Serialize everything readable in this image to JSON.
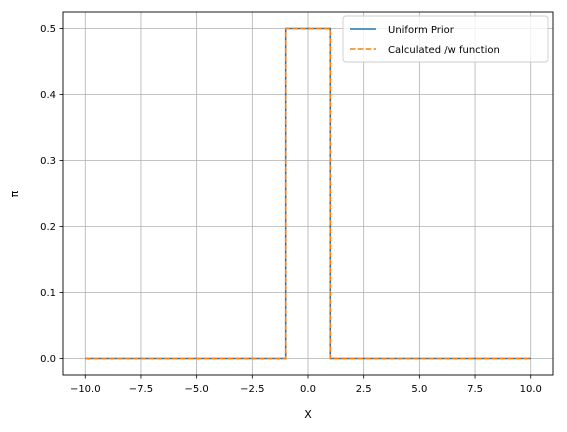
{
  "chart_data": {
    "type": "line",
    "title": "",
    "xlabel": "X",
    "ylabel": "π",
    "xlim": [
      -11.0,
      11.0
    ],
    "ylim": [
      -0.025,
      0.525
    ],
    "grid": true,
    "legend_position": "top-right",
    "x_ticks": [
      -10.0,
      -7.5,
      -5.0,
      -2.5,
      0.0,
      2.5,
      5.0,
      7.5,
      10.0
    ],
    "x_tick_labels": [
      "−10.0",
      "−7.5",
      "−5.0",
      "−2.5",
      "0.0",
      "2.5",
      "5.0",
      "7.5",
      "10.0"
    ],
    "y_ticks": [
      0.0,
      0.1,
      0.2,
      0.3,
      0.4,
      0.5
    ],
    "y_tick_labels": [
      "0.0",
      "0.1",
      "0.2",
      "0.3",
      "0.4",
      "0.5"
    ],
    "series": [
      {
        "name": "Uniform Prior",
        "color": "#1f77b4",
        "style": "solid",
        "x": [
          -10.0,
          -1.0,
          -1.0,
          1.0,
          1.0,
          10.0
        ],
        "y": [
          0.0,
          0.0,
          0.5,
          0.5,
          0.0,
          0.0
        ]
      },
      {
        "name": "Calculated /w function",
        "color": "#ff7f0e",
        "style": "dashed",
        "x": [
          -10.0,
          -1.0,
          -1.0,
          1.0,
          1.0,
          10.0
        ],
        "y": [
          0.0,
          0.0,
          0.5,
          0.5,
          0.0,
          0.0
        ]
      }
    ]
  }
}
